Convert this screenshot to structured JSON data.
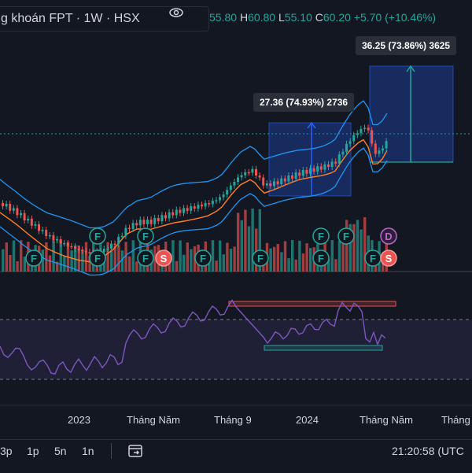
{
  "symbol": {
    "title": "g khoán FPT · 1W · HSX",
    "eye_icon": "eye-icon"
  },
  "ohlc": {
    "open_value": "55.80",
    "high_label": "H",
    "high_value": "60.80",
    "low_label": "L",
    "low_value": "55.10",
    "close_label": "C",
    "close_value": "60.20",
    "change": "+5.70 (+10.46%)"
  },
  "measures": [
    {
      "label": "27.36 (74.93%) 2736"
    },
    {
      "label": "36.25 (73.86%) 3625"
    }
  ],
  "x_axis": {
    "labels": [
      "2023",
      "Tháng Năm",
      "Tháng 9",
      "2024",
      "Tháng Năm",
      "Tháng"
    ]
  },
  "badges": [
    "F",
    "F",
    "F",
    "F",
    "F",
    "S",
    "F",
    "F",
    "F",
    "F",
    "F",
    "F",
    "F",
    "S",
    "D"
  ],
  "timeframes": [
    "3p",
    "1p",
    "5n",
    "1n"
  ],
  "calendar_icon": "calendar-range-icon",
  "clock": "21:20:58 (UTC",
  "colors": {
    "background": "#131722",
    "up": "#26a69a",
    "down": "#ef5350",
    "bollinger": "#2196f3",
    "ma": "#ff7f27",
    "rsi": "#7e57c2",
    "measure_fill": "#2962ff"
  }
}
